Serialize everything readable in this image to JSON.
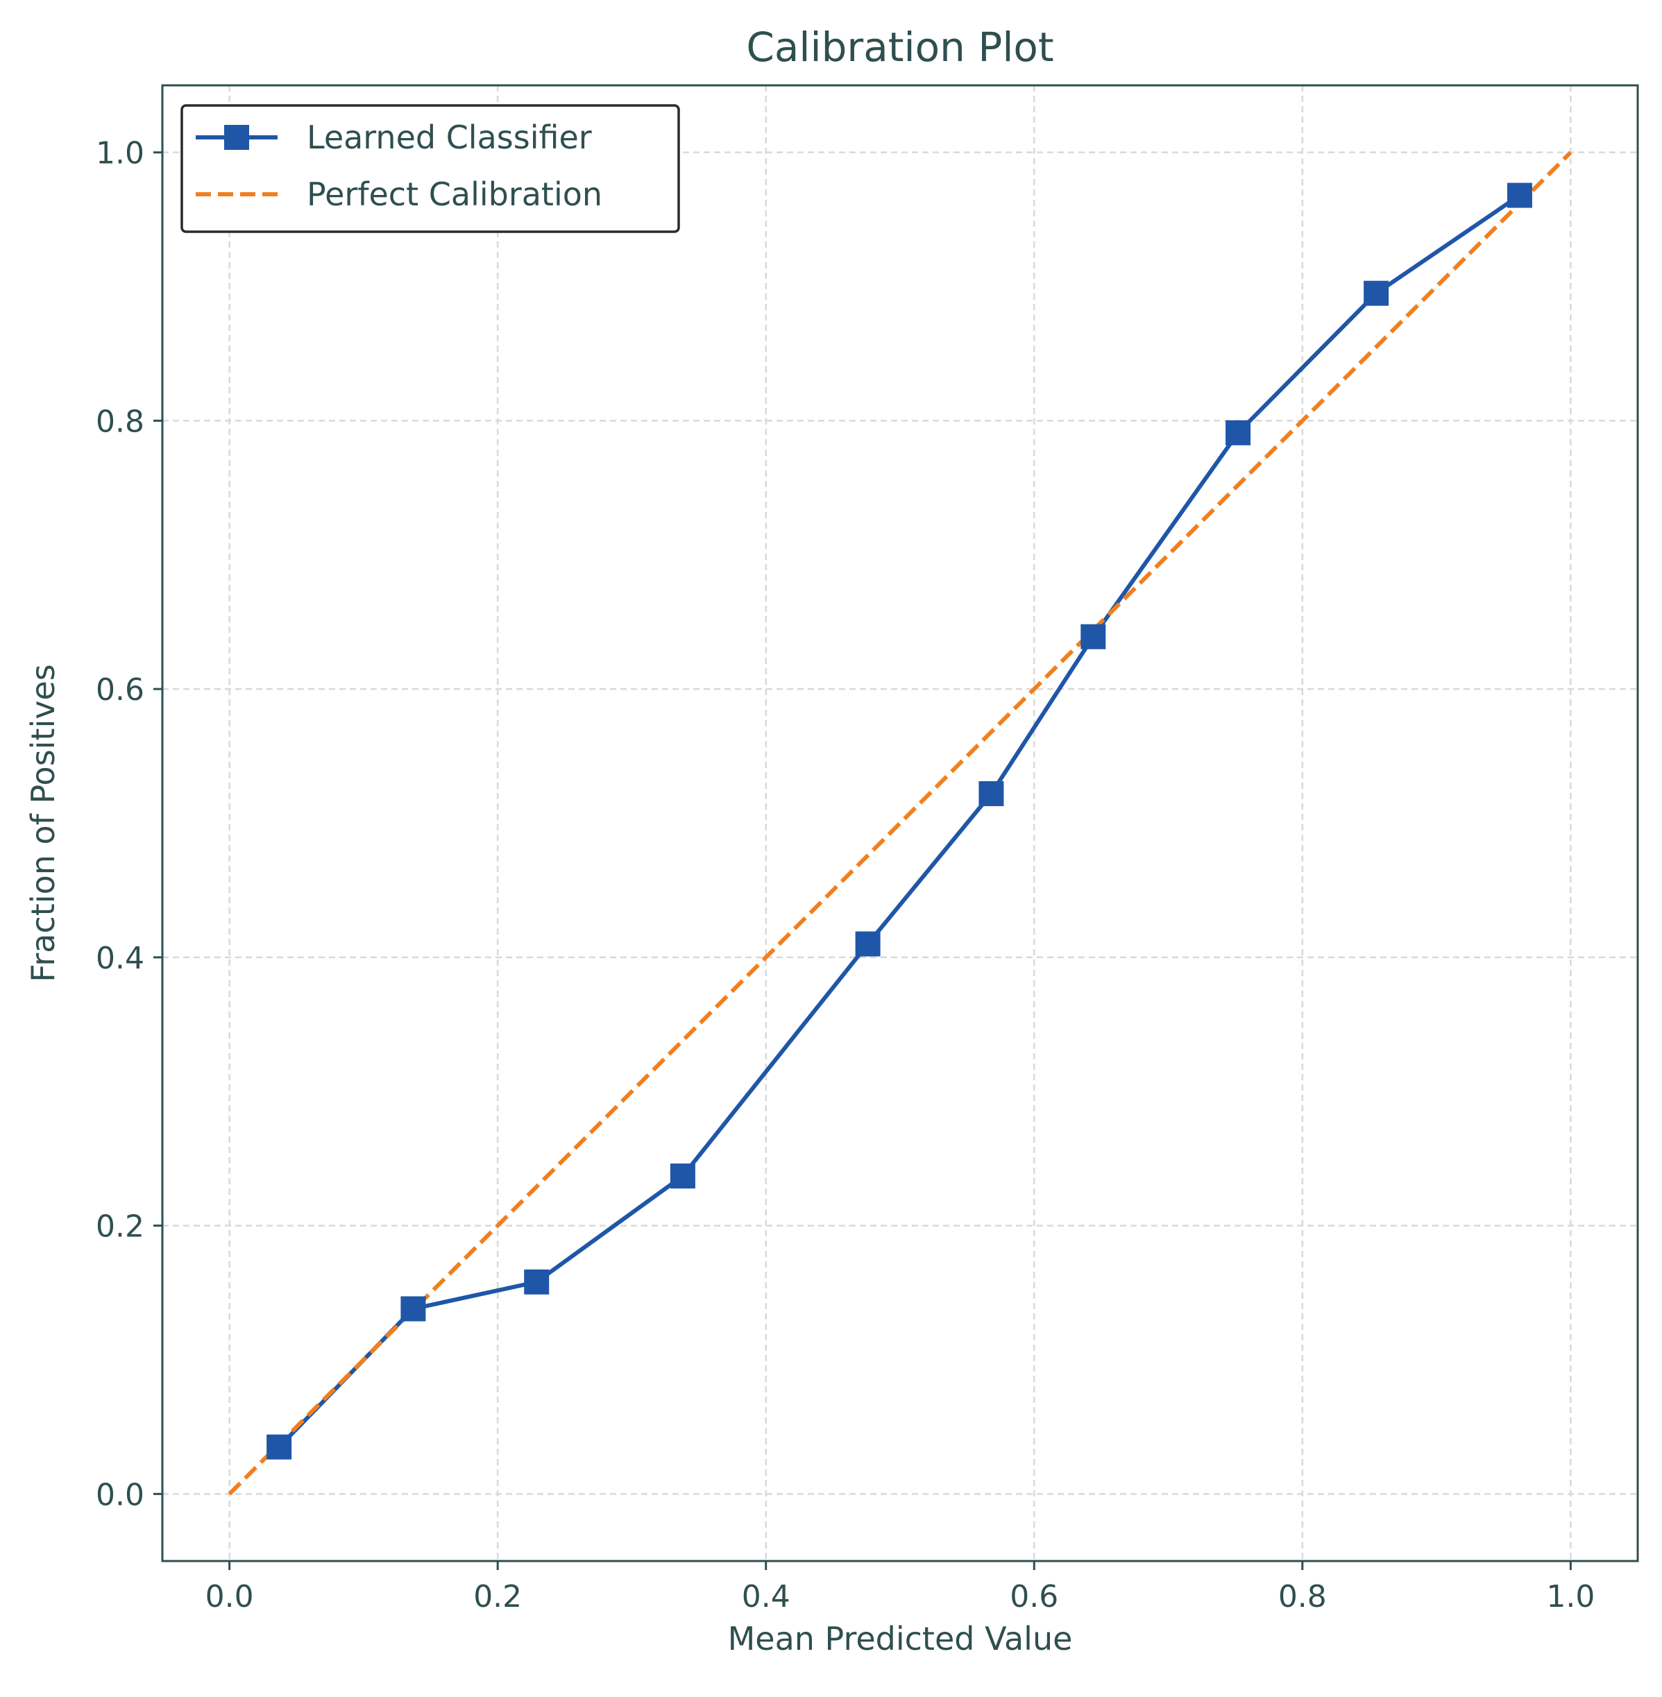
{
  "chart_data": {
    "type": "line",
    "title": "Calibration Plot",
    "xlabel": "Mean Predicted Value",
    "ylabel": "Fraction of Positives",
    "xlim": [
      -0.05,
      1.05
    ],
    "ylim": [
      -0.05,
      1.05
    ],
    "xticks": [
      "0.0",
      "0.2",
      "0.4",
      "0.6",
      "0.8",
      "1.0"
    ],
    "yticks": [
      "0.0",
      "0.2",
      "0.4",
      "0.6",
      "0.8",
      "1.0"
    ],
    "grid": true,
    "legend_position": "top-left",
    "series": [
      {
        "name": "Learned Classifier",
        "color": "#1f56a8",
        "marker": "square",
        "line_style": "solid",
        "x": [
          0.037,
          0.137,
          0.229,
          0.338,
          0.476,
          0.568,
          0.644,
          0.752,
          0.855,
          0.962
        ],
        "y": [
          0.035,
          0.138,
          0.158,
          0.237,
          0.41,
          0.522,
          0.639,
          0.791,
          0.895,
          0.968
        ]
      },
      {
        "name": "Perfect Calibration",
        "color": "#f0801f",
        "marker": "none",
        "line_style": "dashed",
        "x": [
          0,
          1
        ],
        "y": [
          0,
          1
        ]
      }
    ]
  }
}
